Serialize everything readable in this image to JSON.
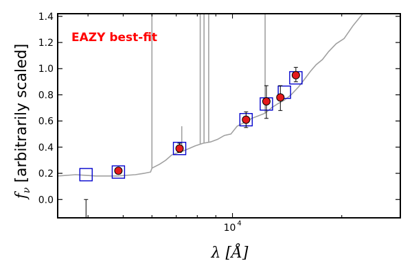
{
  "chart_data": {
    "type": "scatter",
    "title": "",
    "xlabel_symbol": "λ",
    "xlabel_unit": "[Å]",
    "ylabel_symbol": "f",
    "ylabel_subscript": "ν",
    "ylabel_text": "[arbitrarily scaled]",
    "xscale": "log",
    "xlim": [
      3300,
      29000
    ],
    "ylim": [
      -0.14,
      1.42
    ],
    "yticks": [
      0.0,
      0.2,
      0.4,
      0.6,
      0.8,
      1.0,
      1.2,
      1.4
    ],
    "ytick_labels": [
      "0.0",
      "0.2",
      "0.4",
      "0.6",
      "0.8",
      "1.0",
      "1.2",
      "1.4"
    ],
    "xtick_major_label": {
      "base": "10",
      "exponent": "4",
      "value": 10000
    },
    "annotation": {
      "text": "EAZY best-fit",
      "color": "#ff0000",
      "placement": "top-left"
    },
    "colors": {
      "model": "#a0a0a0",
      "observed_fill": "#e41a1c",
      "model_box": "#0000cc",
      "errorbar": "#000000"
    },
    "series": [
      {
        "name": "best-fit template",
        "kind": "line",
        "x": [
          3300,
          3700,
          4200,
          4800,
          5400,
          5700,
          5950,
          6000,
          6300,
          6550,
          6800,
          7100,
          7300,
          7600,
          7900,
          8300,
          8700,
          9100,
          9500,
          9900,
          10300,
          10800,
          11300,
          11800,
          12300,
          12800,
          13300,
          13900,
          14500,
          15200,
          15800,
          16400,
          17000,
          17700,
          18400,
          19300,
          20300,
          21500,
          23000
        ],
        "y": [
          0.18,
          0.19,
          0.18,
          0.18,
          0.19,
          0.2,
          0.21,
          0.24,
          0.27,
          0.3,
          0.34,
          0.36,
          0.37,
          0.39,
          0.41,
          0.43,
          0.44,
          0.46,
          0.49,
          0.5,
          0.56,
          0.59,
          0.62,
          0.64,
          0.66,
          0.7,
          0.73,
          0.76,
          0.8,
          0.86,
          0.92,
          0.98,
          1.03,
          1.07,
          1.13,
          1.19,
          1.23,
          1.33,
          1.43
        ]
      },
      {
        "name": "template spikes",
        "kind": "spikes",
        "x": [
          6000,
          7250,
          8150,
          8350,
          8600,
          12300
        ],
        "y": [
          1.42,
          0.56,
          1.42,
          1.42,
          1.42,
          1.42
        ]
      },
      {
        "name": "model photometry",
        "kind": "open-squares",
        "x": [
          3950,
          4850,
          7150,
          10900,
          12400,
          13900,
          14950
        ],
        "y": [
          0.19,
          0.21,
          0.39,
          0.61,
          0.73,
          0.82,
          0.93
        ]
      },
      {
        "name": "observed photometry",
        "kind": "points-with-errors",
        "x": [
          4850,
          7150,
          10900,
          12400,
          13550,
          14950
        ],
        "y": [
          0.22,
          0.39,
          0.61,
          0.75,
          0.78,
          0.95
        ],
        "yerr_low": [
          0.02,
          0.03,
          0.06,
          0.13,
          0.1,
          0.05
        ],
        "yerr_high": [
          0.02,
          0.04,
          0.06,
          0.12,
          0.09,
          0.06
        ]
      },
      {
        "name": "upper limit",
        "kind": "limit-bar",
        "x": [
          3950
        ],
        "y": [
          0.0
        ],
        "y_bottom": [
          -0.14
        ]
      }
    ]
  }
}
